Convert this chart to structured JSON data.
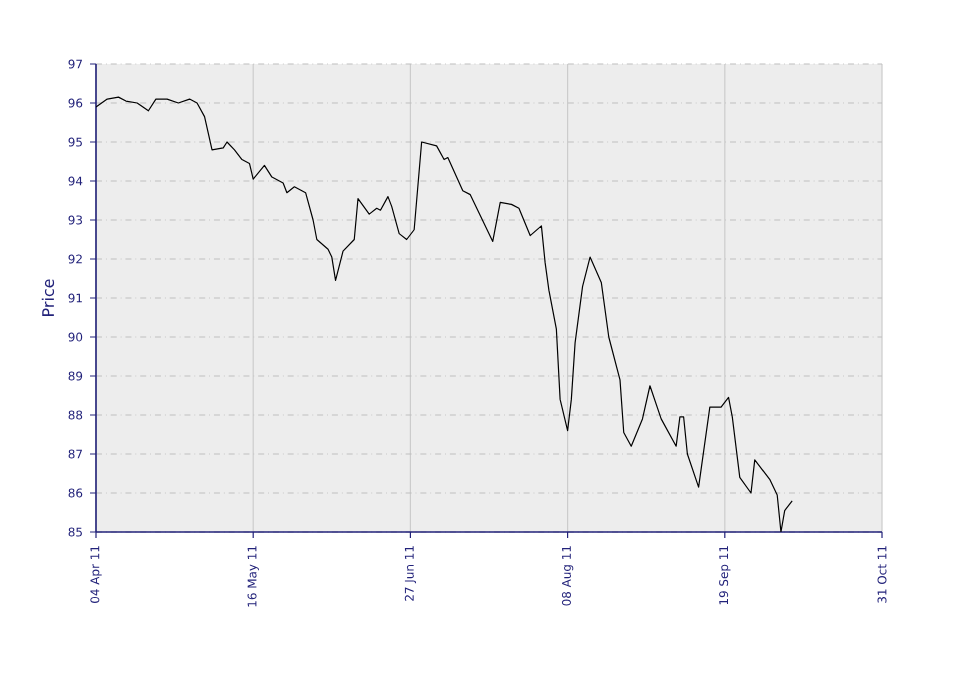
{
  "chart_data": {
    "type": "line",
    "ylabel": "Price",
    "xlim": [
      "2011-04-04",
      "2011-10-31"
    ],
    "xticks": [
      {
        "value": "2011-04-04",
        "label": "04 Apr 11"
      },
      {
        "value": "2011-05-16",
        "label": "16 May 11"
      },
      {
        "value": "2011-06-27",
        "label": "27 Jun 11"
      },
      {
        "value": "2011-08-08",
        "label": "08 Aug 11"
      },
      {
        "value": "2011-09-19",
        "label": "19 Sep 11"
      },
      {
        "value": "2011-10-31",
        "label": "31 Oct 11"
      }
    ],
    "ylim": [
      85,
      97
    ],
    "yticks": [
      85,
      86,
      87,
      88,
      89,
      90,
      91,
      92,
      93,
      94,
      95,
      96,
      97
    ],
    "grid": true,
    "marker": "none",
    "line_style": "solid",
    "series": [
      {
        "color": "#000000",
        "x": [
          "2011-04-04",
          "2011-04-07",
          "2011-04-10",
          "2011-04-12",
          "2011-04-15",
          "2011-04-18",
          "2011-04-20",
          "2011-04-23",
          "2011-04-26",
          "2011-04-29",
          "2011-05-01",
          "2011-05-03",
          "2011-05-05",
          "2011-05-08",
          "2011-05-09",
          "2011-05-11",
          "2011-05-13",
          "2011-05-15",
          "2011-05-16",
          "2011-05-19",
          "2011-05-21",
          "2011-05-24",
          "2011-05-25",
          "2011-05-27",
          "2011-05-30",
          "2011-06-01",
          "2011-06-02",
          "2011-06-05",
          "2011-06-06",
          "2011-06-07",
          "2011-06-09",
          "2011-06-12",
          "2011-06-13",
          "2011-06-16",
          "2011-06-18",
          "2011-06-19",
          "2011-06-21",
          "2011-06-22",
          "2011-06-24",
          "2011-06-26",
          "2011-06-28",
          "2011-06-30",
          "2011-07-04",
          "2011-07-06",
          "2011-07-07",
          "2011-07-11",
          "2011-07-13",
          "2011-07-16",
          "2011-07-19",
          "2011-07-21",
          "2011-07-24",
          "2011-07-26",
          "2011-07-29",
          "2011-08-01",
          "2011-08-02",
          "2011-08-03",
          "2011-08-05",
          "2011-08-06",
          "2011-08-08",
          "2011-08-09",
          "2011-08-10",
          "2011-08-12",
          "2011-08-14",
          "2011-08-17",
          "2011-08-19",
          "2011-08-22",
          "2011-08-23",
          "2011-08-25",
          "2011-08-28",
          "2011-08-30",
          "2011-09-02",
          "2011-09-06",
          "2011-09-07",
          "2011-09-08",
          "2011-09-09",
          "2011-09-12",
          "2011-09-15",
          "2011-09-18",
          "2011-09-20",
          "2011-09-21",
          "2011-09-23",
          "2011-09-26",
          "2011-09-27",
          "2011-09-29",
          "2011-10-01",
          "2011-10-03",
          "2011-10-04",
          "2011-10-05",
          "2011-10-07"
        ],
        "values": [
          95.9,
          96.1,
          96.15,
          96.05,
          96.0,
          95.8,
          96.1,
          96.1,
          96.0,
          96.1,
          96.0,
          95.65,
          94.8,
          94.85,
          95.0,
          94.8,
          94.55,
          94.45,
          94.05,
          94.4,
          94.1,
          93.95,
          93.7,
          93.85,
          93.7,
          93.0,
          92.5,
          92.25,
          92.05,
          91.45,
          92.2,
          92.5,
          93.55,
          93.15,
          93.3,
          93.25,
          93.6,
          93.35,
          92.65,
          92.5,
          92.75,
          95.0,
          94.9,
          94.55,
          94.6,
          93.75,
          93.65,
          93.05,
          92.45,
          93.45,
          93.4,
          93.3,
          92.6,
          92.85,
          91.9,
          91.2,
          90.2,
          88.4,
          87.6,
          88.4,
          89.85,
          91.3,
          92.05,
          91.4,
          90.0,
          88.9,
          87.55,
          87.2,
          87.9,
          88.75,
          87.9,
          87.2,
          87.95,
          87.95,
          87.0,
          86.15,
          88.2,
          88.2,
          88.45,
          87.95,
          86.4,
          86.0,
          86.85,
          86.6,
          86.35,
          85.95,
          85.0,
          85.55,
          85.8
        ]
      }
    ]
  }
}
